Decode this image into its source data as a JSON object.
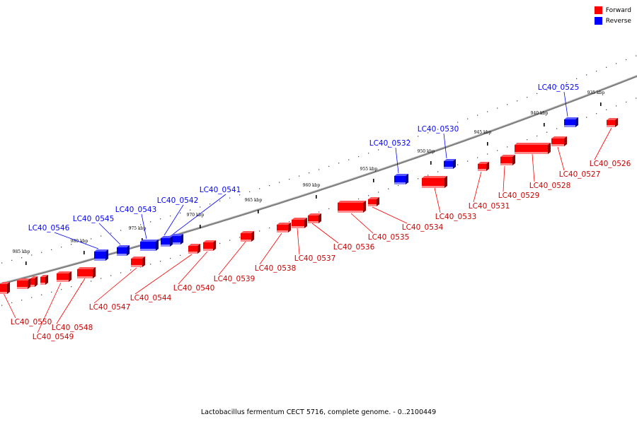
{
  "legend": [
    {
      "label": "Forward",
      "color": "#ff0000"
    },
    {
      "label": "Reverse",
      "color": "#0000ff"
    }
  ],
  "caption": "Lactobacillus fermentum CECT 5716, complete genome. - 0..2100449",
  "colors": {
    "forward": "#ff0000",
    "reverse": "#0000ff",
    "backbone": "#808080"
  },
  "ticks": [
    "935 kbp",
    "940 kbp",
    "945 kbp",
    "950 kbp",
    "955 kbp",
    "960 kbp",
    "965 kbp",
    "970 kbp",
    "975 kbp",
    "980 kbp",
    "985 kbp"
  ],
  "reverse_genes": [
    "LC40_0525",
    "LC40_0530",
    "LC40_0532",
    "LC40_0541",
    "LC40_0542",
    "LC40_0543",
    "LC40_0545",
    "LC40_0546"
  ],
  "forward_genes": [
    "LC40_0526",
    "LC40_0527",
    "LC40_0528",
    "LC40_0529",
    "LC40_0531",
    "LC40_0533",
    "LC40_0534",
    "LC40_0535",
    "LC40_0536",
    "LC40_0537",
    "LC40_0538",
    "LC40_0539",
    "LC40_0540",
    "LC40_0544",
    "LC40_0547",
    "LC40_0548",
    "LC40_0549",
    "LC40_0550"
  ]
}
